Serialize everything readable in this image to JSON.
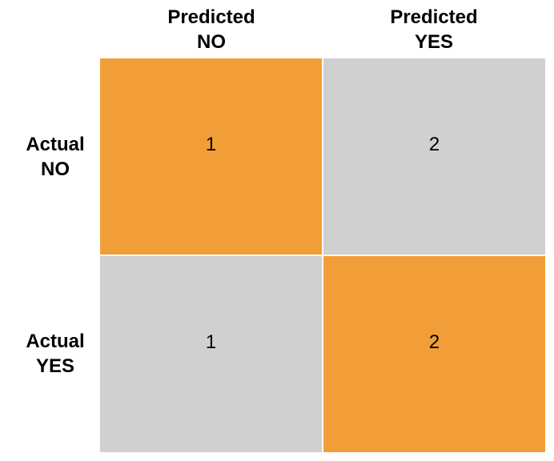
{
  "columns": [
    {
      "line1": "Predicted",
      "line2": "NO"
    },
    {
      "line1": "Predicted",
      "line2": "YES"
    }
  ],
  "rows": [
    {
      "line1": "Actual",
      "line2": "NO"
    },
    {
      "line1": "Actual",
      "line2": "YES"
    }
  ],
  "cells": [
    [
      {
        "value": "1",
        "color": "#f29e38"
      },
      {
        "value": "2",
        "color": "#d1cfd0"
      }
    ],
    [
      {
        "value": "1",
        "color": "#d1cfd0"
      },
      {
        "value": "2",
        "color": "#f29e38"
      }
    ]
  ]
}
